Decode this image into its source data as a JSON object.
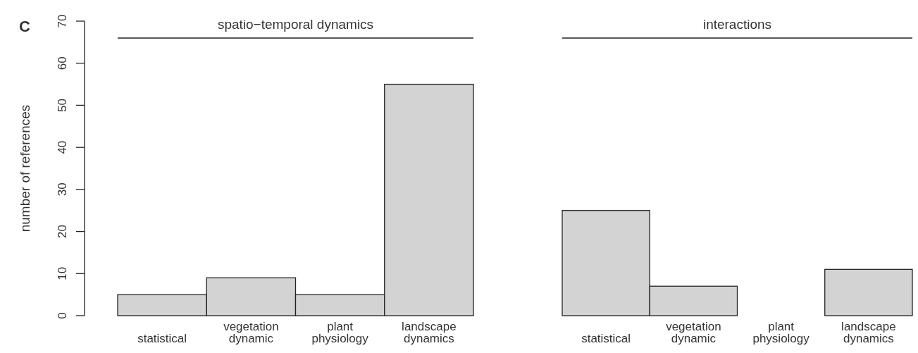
{
  "chart_data": [
    {
      "type": "bar",
      "title": "spatio−temporal dynamics",
      "ylabel": "number of references",
      "annotations": [
        "C"
      ],
      "categories": [
        "statistical",
        "vegetation dynamic",
        "plant physiology",
        "landscape dynamics"
      ],
      "values": [
        5,
        9,
        5,
        55
      ],
      "ref_lines": [
        {
          "axis": "y",
          "value": 66,
          "color": "#222222"
        }
      ],
      "color": "#d3d3d3",
      "ylim": [
        0,
        70
      ],
      "yticks": [
        0,
        10,
        20,
        30,
        40,
        50,
        60,
        70
      ],
      "grid": false
    },
    {
      "type": "bar",
      "title": "interactions",
      "categories": [
        "statistical",
        "vegetation dynamic",
        "plant physiology",
        "landscape dynamics"
      ],
      "values": [
        25,
        7,
        0,
        11
      ],
      "ref_lines": [
        {
          "axis": "y",
          "value": 66,
          "color": "#222222"
        }
      ],
      "color": "#d3d3d3",
      "ylim": [
        0,
        70
      ],
      "tick_labels": "x",
      "grid": false
    }
  ]
}
